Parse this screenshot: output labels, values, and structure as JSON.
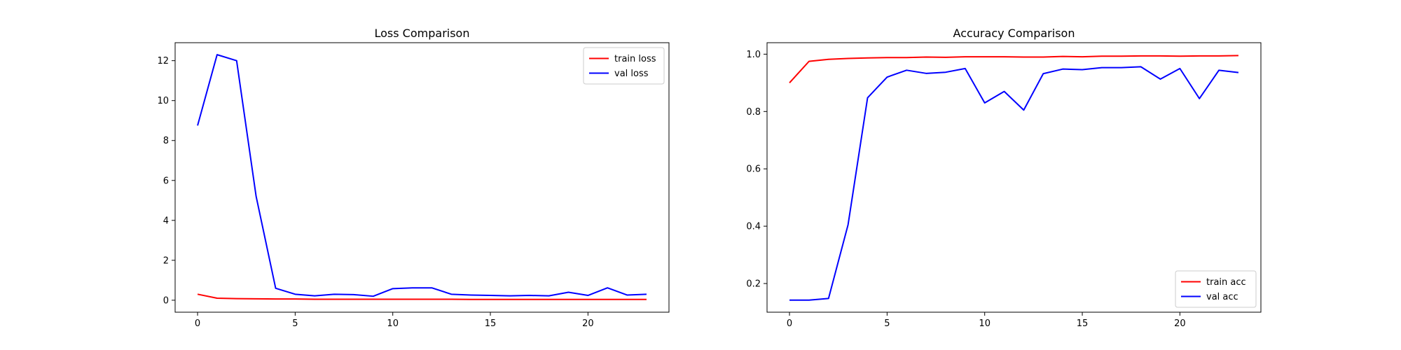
{
  "chart_data": [
    {
      "type": "line",
      "title": "Loss Comparison",
      "xlabel": "",
      "ylabel": "",
      "xlim": [
        -1.15,
        24.15
      ],
      "ylim": [
        -0.6,
        12.9
      ],
      "xticks": [
        0,
        5,
        10,
        15,
        20
      ],
      "yticks": [
        0,
        2,
        4,
        6,
        8,
        10,
        12
      ],
      "tick_format": "int",
      "grid": false,
      "legend_position": "top-right",
      "x": [
        0,
        1,
        2,
        3,
        4,
        5,
        6,
        7,
        8,
        9,
        10,
        11,
        12,
        13,
        14,
        15,
        16,
        17,
        18,
        19,
        20,
        21,
        22,
        23
      ],
      "series": [
        {
          "name": "train loss",
          "color": "#ff0000",
          "values": [
            0.3,
            0.1,
            0.08,
            0.07,
            0.06,
            0.06,
            0.05,
            0.05,
            0.05,
            0.05,
            0.05,
            0.05,
            0.05,
            0.05,
            0.04,
            0.04,
            0.04,
            0.04,
            0.04,
            0.04,
            0.04,
            0.04,
            0.04,
            0.04
          ]
        },
        {
          "name": "val loss",
          "color": "#0000ff",
          "values": [
            8.75,
            12.3,
            12.0,
            5.2,
            0.6,
            0.3,
            0.22,
            0.3,
            0.28,
            0.2,
            0.58,
            0.62,
            0.62,
            0.3,
            0.26,
            0.24,
            0.22,
            0.24,
            0.22,
            0.4,
            0.24,
            0.62,
            0.26,
            0.3
          ]
        }
      ]
    },
    {
      "type": "line",
      "title": "Accuracy Comparison",
      "xlabel": "",
      "ylabel": "",
      "xlim": [
        -1.15,
        24.15
      ],
      "ylim": [
        0.1,
        1.04
      ],
      "xticks": [
        0,
        5,
        10,
        15,
        20
      ],
      "yticks": [
        0.2,
        0.4,
        0.6,
        0.8,
        1.0
      ],
      "tick_format": "1dp",
      "grid": false,
      "legend_position": "bottom-right",
      "x": [
        0,
        1,
        2,
        3,
        4,
        5,
        6,
        7,
        8,
        9,
        10,
        11,
        12,
        13,
        14,
        15,
        16,
        17,
        18,
        19,
        20,
        21,
        22,
        23
      ],
      "series": [
        {
          "name": "train acc",
          "color": "#ff0000",
          "values": [
            0.9,
            0.975,
            0.982,
            0.985,
            0.987,
            0.988,
            0.988,
            0.99,
            0.989,
            0.991,
            0.991,
            0.991,
            0.99,
            0.99,
            0.992,
            0.991,
            0.993,
            0.993,
            0.994,
            0.994,
            0.993,
            0.994,
            0.994,
            0.995
          ]
        },
        {
          "name": "val acc",
          "color": "#0000ff",
          "values": [
            0.142,
            0.142,
            0.148,
            0.405,
            0.848,
            0.92,
            0.944,
            0.933,
            0.937,
            0.95,
            0.83,
            0.87,
            0.805,
            0.932,
            0.948,
            0.946,
            0.953,
            0.953,
            0.956,
            0.913,
            0.95,
            0.845,
            0.944,
            0.936
          ]
        }
      ]
    }
  ]
}
